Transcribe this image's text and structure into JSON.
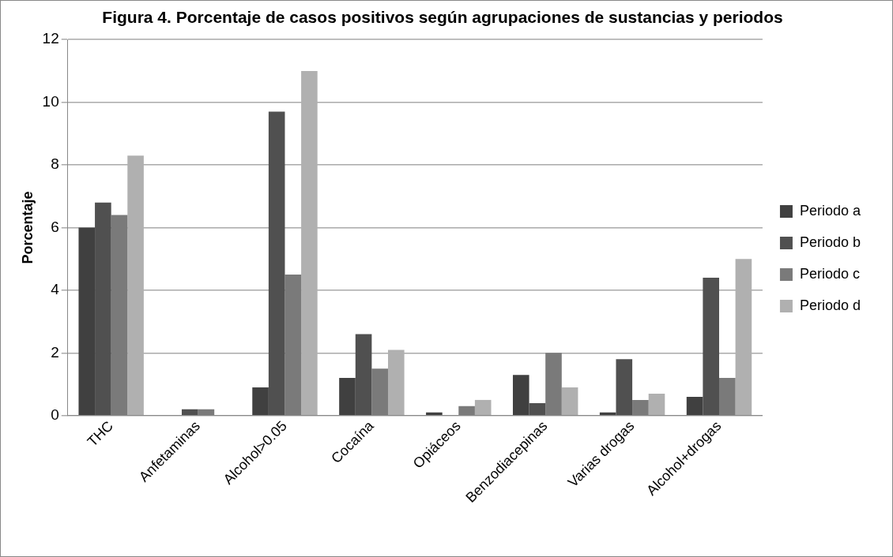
{
  "chart_data": {
    "type": "bar",
    "title": "Figura 4. Porcentaje de casos positivos según agrupaciones de sustancias y periodos",
    "ylabel": "Porcentaje",
    "categories": [
      "THC",
      "Anfetaminas",
      "Alcohol>0.05",
      "Cocaína",
      "Opiáceos",
      "Benzodiacepinas",
      "Varias drogas",
      "Alcohol+drogas"
    ],
    "series": [
      {
        "name": "Periodo a",
        "color": "#404040",
        "values": [
          6,
          0,
          0.9,
          1.2,
          0.1,
          1.3,
          0.1,
          0.6
        ]
      },
      {
        "name": "Periodo b",
        "color": "#505050",
        "values": [
          6.8,
          0.2,
          9.7,
          2.6,
          0,
          0.4,
          1.8,
          4.4
        ]
      },
      {
        "name": "Periodo c",
        "color": "#7a7a7a",
        "values": [
          6.4,
          0.2,
          4.5,
          1.5,
          0.3,
          2.0,
          0.5,
          1.2
        ]
      },
      {
        "name": "Periodo d",
        "color": "#b0b0b0",
        "values": [
          8.3,
          0,
          11,
          2.1,
          0.5,
          0.9,
          0.7,
          5.0
        ]
      }
    ],
    "ylim": [
      0,
      12
    ],
    "yticks": [
      0,
      2,
      4,
      6,
      8,
      10,
      12
    ],
    "grid": "y",
    "legend": "right"
  }
}
